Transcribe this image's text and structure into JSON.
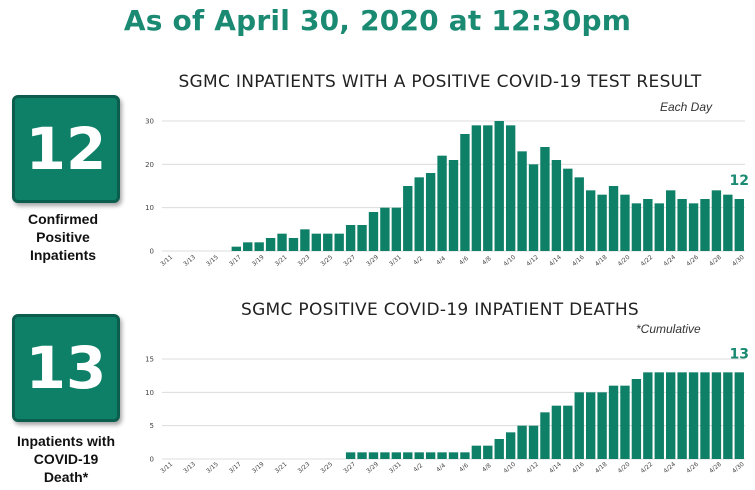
{
  "headline": "As of April 30, 2020 at 12:30pm",
  "stats": [
    {
      "number": "12",
      "label_lines": [
        "Confirmed",
        "Positive",
        "Inpatients"
      ]
    },
    {
      "number": "13",
      "label_lines": [
        "Inpatients with",
        "COVID-19",
        "Death*"
      ]
    }
  ],
  "colors": {
    "accent": "#1a8a72",
    "bar": "#0f8068",
    "box": "#0f8068",
    "grid": "#dcdcdc"
  },
  "chart_data": [
    {
      "type": "bar",
      "title": "SGMC INPATIENTS WITH A POSITIVE COVID-19 TEST RESULT",
      "note": "Each Day",
      "end_label": "12",
      "ylim": [
        0,
        30
      ],
      "yticks": [
        0,
        10,
        20,
        30
      ],
      "grid": true,
      "categories": [
        "3/11",
        "3/12",
        "3/13",
        "3/14",
        "3/15",
        "3/16",
        "3/17",
        "3/18",
        "3/19",
        "3/20",
        "3/21",
        "3/22",
        "3/23",
        "3/24",
        "3/25",
        "3/26",
        "3/27",
        "3/28",
        "3/29",
        "3/30",
        "3/31",
        "4/1",
        "4/2",
        "4/3",
        "4/4",
        "4/5",
        "4/6",
        "4/7",
        "4/8",
        "4/9",
        "4/10",
        "4/11",
        "4/12",
        "4/13",
        "4/14",
        "4/15",
        "4/16",
        "4/17",
        "4/18",
        "4/19",
        "4/20",
        "4/21",
        "4/22",
        "4/23",
        "4/24",
        "4/25",
        "4/26",
        "4/27",
        "4/28",
        "4/29",
        "4/30"
      ],
      "tick_labels": [
        "3/11",
        "3/13",
        "3/15",
        "3/17",
        "3/19",
        "3/21",
        "3/23",
        "3/25",
        "3/27",
        "3/29",
        "3/31",
        "4/2",
        "4/4",
        "4/6",
        "4/8",
        "4/10",
        "4/12",
        "4/14",
        "4/16",
        "4/18",
        "4/20",
        "4/22",
        "4/24",
        "4/26",
        "4/28",
        "4/30"
      ],
      "values": [
        0,
        0,
        0,
        0,
        0,
        0,
        1,
        2,
        2,
        3,
        4,
        3,
        5,
        4,
        4,
        4,
        6,
        6,
        9,
        10,
        10,
        15,
        17,
        18,
        22,
        21,
        27,
        29,
        29,
        30,
        29,
        23,
        20,
        24,
        21,
        19,
        17,
        14,
        13,
        15,
        13,
        11,
        12,
        11,
        14,
        12,
        11,
        12,
        14,
        13,
        12
      ]
    },
    {
      "type": "bar",
      "title": "SGMC POSITIVE COVID-19 INPATIENT DEATHS",
      "note": "*Cumulative",
      "end_label": "13",
      "ylim": [
        0,
        15
      ],
      "yticks": [
        0,
        5,
        10,
        15
      ],
      "grid": true,
      "categories": [
        "3/11",
        "3/12",
        "3/13",
        "3/14",
        "3/15",
        "3/16",
        "3/17",
        "3/18",
        "3/19",
        "3/20",
        "3/21",
        "3/22",
        "3/23",
        "3/24",
        "3/25",
        "3/26",
        "3/27",
        "3/28",
        "3/29",
        "3/30",
        "3/31",
        "4/1",
        "4/2",
        "4/3",
        "4/4",
        "4/5",
        "4/6",
        "4/7",
        "4/8",
        "4/9",
        "4/10",
        "4/11",
        "4/12",
        "4/13",
        "4/14",
        "4/15",
        "4/16",
        "4/17",
        "4/18",
        "4/19",
        "4/20",
        "4/21",
        "4/22",
        "4/23",
        "4/24",
        "4/25",
        "4/26",
        "4/27",
        "4/28",
        "4/29",
        "4/30"
      ],
      "tick_labels": [
        "3/11",
        "3/13",
        "3/15",
        "3/17",
        "3/19",
        "3/21",
        "3/23",
        "3/25",
        "3/27",
        "3/29",
        "3/31",
        "4/2",
        "4/4",
        "4/6",
        "4/8",
        "4/10",
        "4/12",
        "4/14",
        "4/16",
        "4/18",
        "4/20",
        "4/22",
        "4/24",
        "4/26",
        "4/28",
        "4/30"
      ],
      "values": [
        0,
        0,
        0,
        0,
        0,
        0,
        0,
        0,
        0,
        0,
        0,
        0,
        0,
        0,
        0,
        0,
        1,
        1,
        1,
        1,
        1,
        1,
        1,
        1,
        1,
        1,
        1,
        2,
        2,
        3,
        4,
        5,
        5,
        7,
        8,
        8,
        10,
        10,
        10,
        11,
        11,
        12,
        13,
        13,
        13,
        13,
        13,
        13,
        13,
        13,
        13
      ]
    }
  ]
}
